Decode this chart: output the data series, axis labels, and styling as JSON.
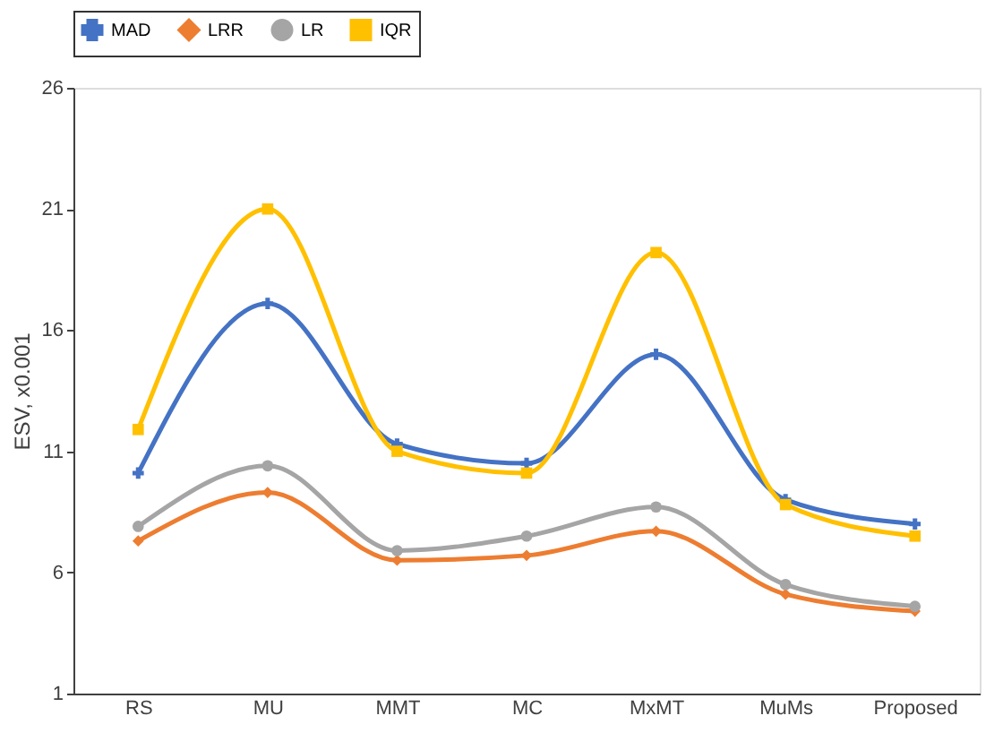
{
  "chart_data": {
    "type": "line",
    "ylabel": "ESV, x0.001",
    "categories": [
      "RS",
      "MU",
      "MMT",
      "MC",
      "MxMT",
      "MuMs",
      "Proposed"
    ],
    "series": [
      {
        "name": "MAD",
        "color": "#4472c4",
        "marker": "cross",
        "values": [
          10.1,
          17.1,
          11.3,
          10.5,
          15.0,
          9.0,
          8.0
        ]
      },
      {
        "name": "LRR",
        "color": "#ed7d31",
        "marker": "diamond",
        "values": [
          7.3,
          9.3,
          6.5,
          6.7,
          7.7,
          5.1,
          4.4
        ]
      },
      {
        "name": "LR",
        "color": "#a5a5a5",
        "marker": "circle",
        "values": [
          7.9,
          10.4,
          6.9,
          7.5,
          8.7,
          5.5,
          4.6
        ]
      },
      {
        "name": "IQR",
        "color": "#ffc000",
        "marker": "square",
        "values": [
          11.9,
          21.0,
          11.0,
          10.1,
          19.2,
          8.8,
          7.5
        ]
      }
    ],
    "ylim": [
      1,
      26
    ],
    "yticks": [
      1,
      6,
      11,
      16,
      21,
      26
    ],
    "grid": false,
    "legend": "top",
    "line_style": "solid"
  }
}
